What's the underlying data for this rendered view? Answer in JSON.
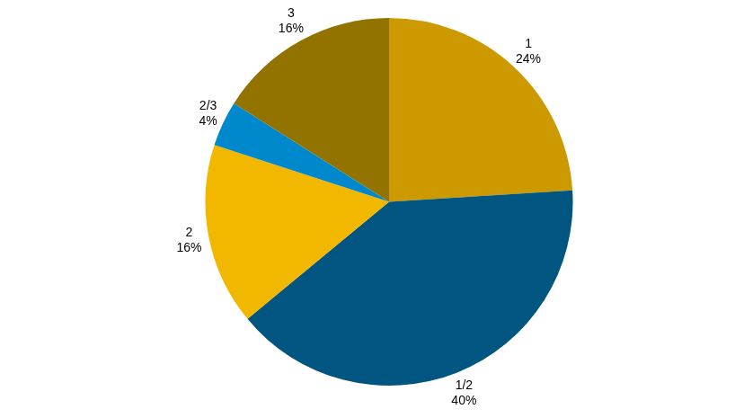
{
  "chart_data": {
    "type": "pie",
    "categories": [
      "1",
      "1/2",
      "2",
      "2/3",
      "3"
    ],
    "values": [
      24,
      40,
      16,
      4,
      16
    ],
    "value_labels": [
      "24%",
      "40%",
      "16%",
      "4%",
      "16%"
    ],
    "colors": [
      "#cc9a00",
      "#005581",
      "#f2b800",
      "#0088cc",
      "#937300"
    ],
    "data_labels": true
  }
}
